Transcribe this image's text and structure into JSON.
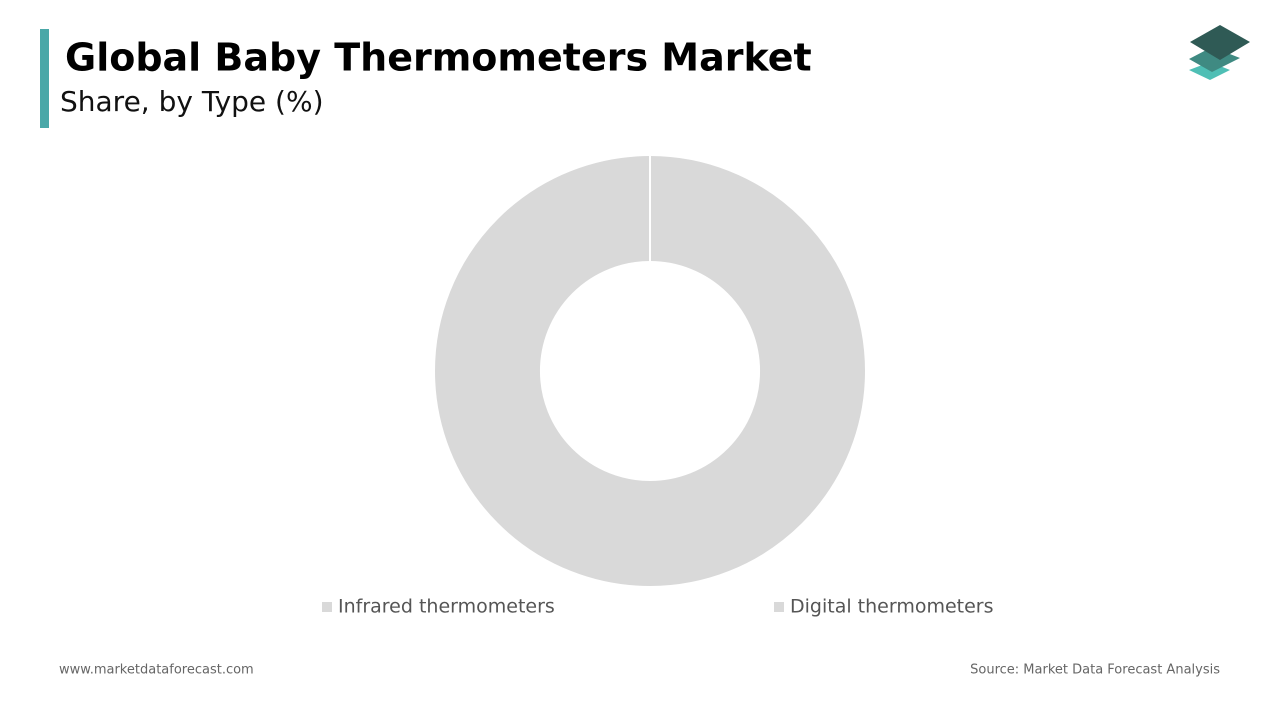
{
  "chart_data": {
    "type": "donut",
    "title": "Global Baby Thermometers Market",
    "subtitle": "Share, by Type (%)",
    "categories": [
      "Infrared thermometers",
      "Digital thermometers"
    ],
    "values": [
      100,
      0
    ],
    "colors": [
      "#d9d9d9",
      "#d9d9d9"
    ]
  },
  "footer": {
    "website": "www.marketdataforecast.com",
    "source": "Source: Market Data Forecast Analysis"
  }
}
